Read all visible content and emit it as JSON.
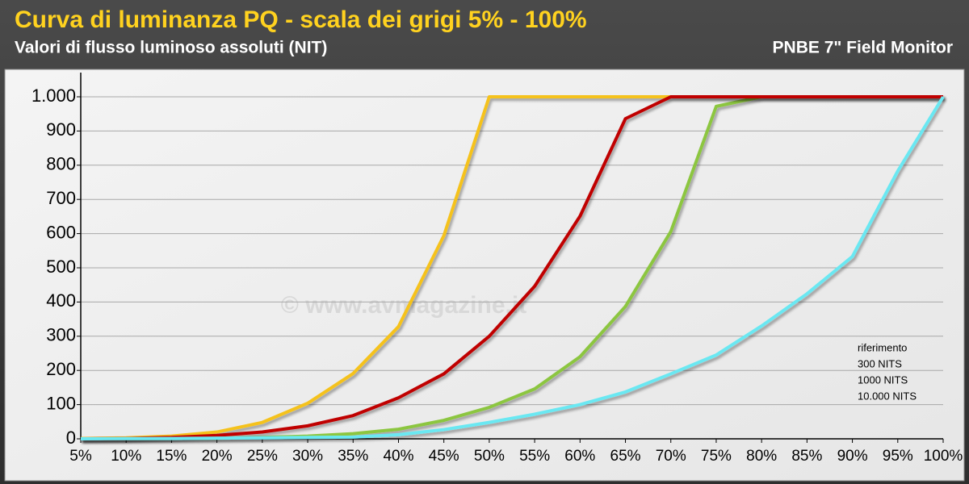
{
  "chart_data": {
    "type": "line",
    "title": "Curva di luminanza PQ - scala dei grigi 5% - 100%",
    "subtitle": "Valori di flusso luminoso assoluti (NIT)",
    "subtitle_right": "PNBE 7\" Field Monitor",
    "watermark": "© www.avmagazine.it",
    "categories": [
      "5%",
      "10%",
      "15%",
      "20%",
      "25%",
      "30%",
      "35%",
      "40%",
      "45%",
      "50%",
      "55%",
      "60%",
      "65%",
      "70%",
      "75%",
      "80%",
      "85%",
      "90%",
      "95%",
      "100%"
    ],
    "ylim": [
      0,
      1000
    ],
    "yticks": [
      0,
      100,
      200,
      300,
      400,
      500,
      600,
      700,
      800,
      900,
      {
        "value": 1000,
        "label": "1.000"
      }
    ],
    "grid": true,
    "legend": "lower-right",
    "series": [
      {
        "name": "riferimento",
        "color": "#8cc63f",
        "values": [
          0,
          0.3,
          1,
          2,
          4,
          8,
          15,
          28,
          54,
          92,
          146,
          240,
          387,
          606,
          972,
          1000,
          1000,
          1000,
          1000,
          1000
        ]
      },
      {
        "name": "300 NITS",
        "color": "#f5c21b",
        "values": [
          1,
          3,
          8,
          20,
          48,
          104,
          191,
          328,
          594,
          1000,
          1000,
          1000,
          1000,
          1000,
          1000,
          1000,
          1000,
          1000,
          1000,
          1000
        ]
      },
      {
        "name": "1000 NITS",
        "color": "#c00000",
        "values": [
          0,
          1,
          4,
          10,
          20,
          38,
          68,
          120,
          190,
          300,
          446,
          651,
          936,
          1000,
          1000,
          1000,
          1000,
          1000,
          1000,
          1000
        ]
      },
      {
        "name": "10.000 NITS",
        "color": "#6ae8f2",
        "values": [
          0,
          0.5,
          1,
          2,
          3,
          4,
          5,
          12,
          27,
          48,
          72,
          100,
          137,
          190,
          245,
          330,
          424,
          533,
          783,
          1000
        ]
      }
    ]
  }
}
